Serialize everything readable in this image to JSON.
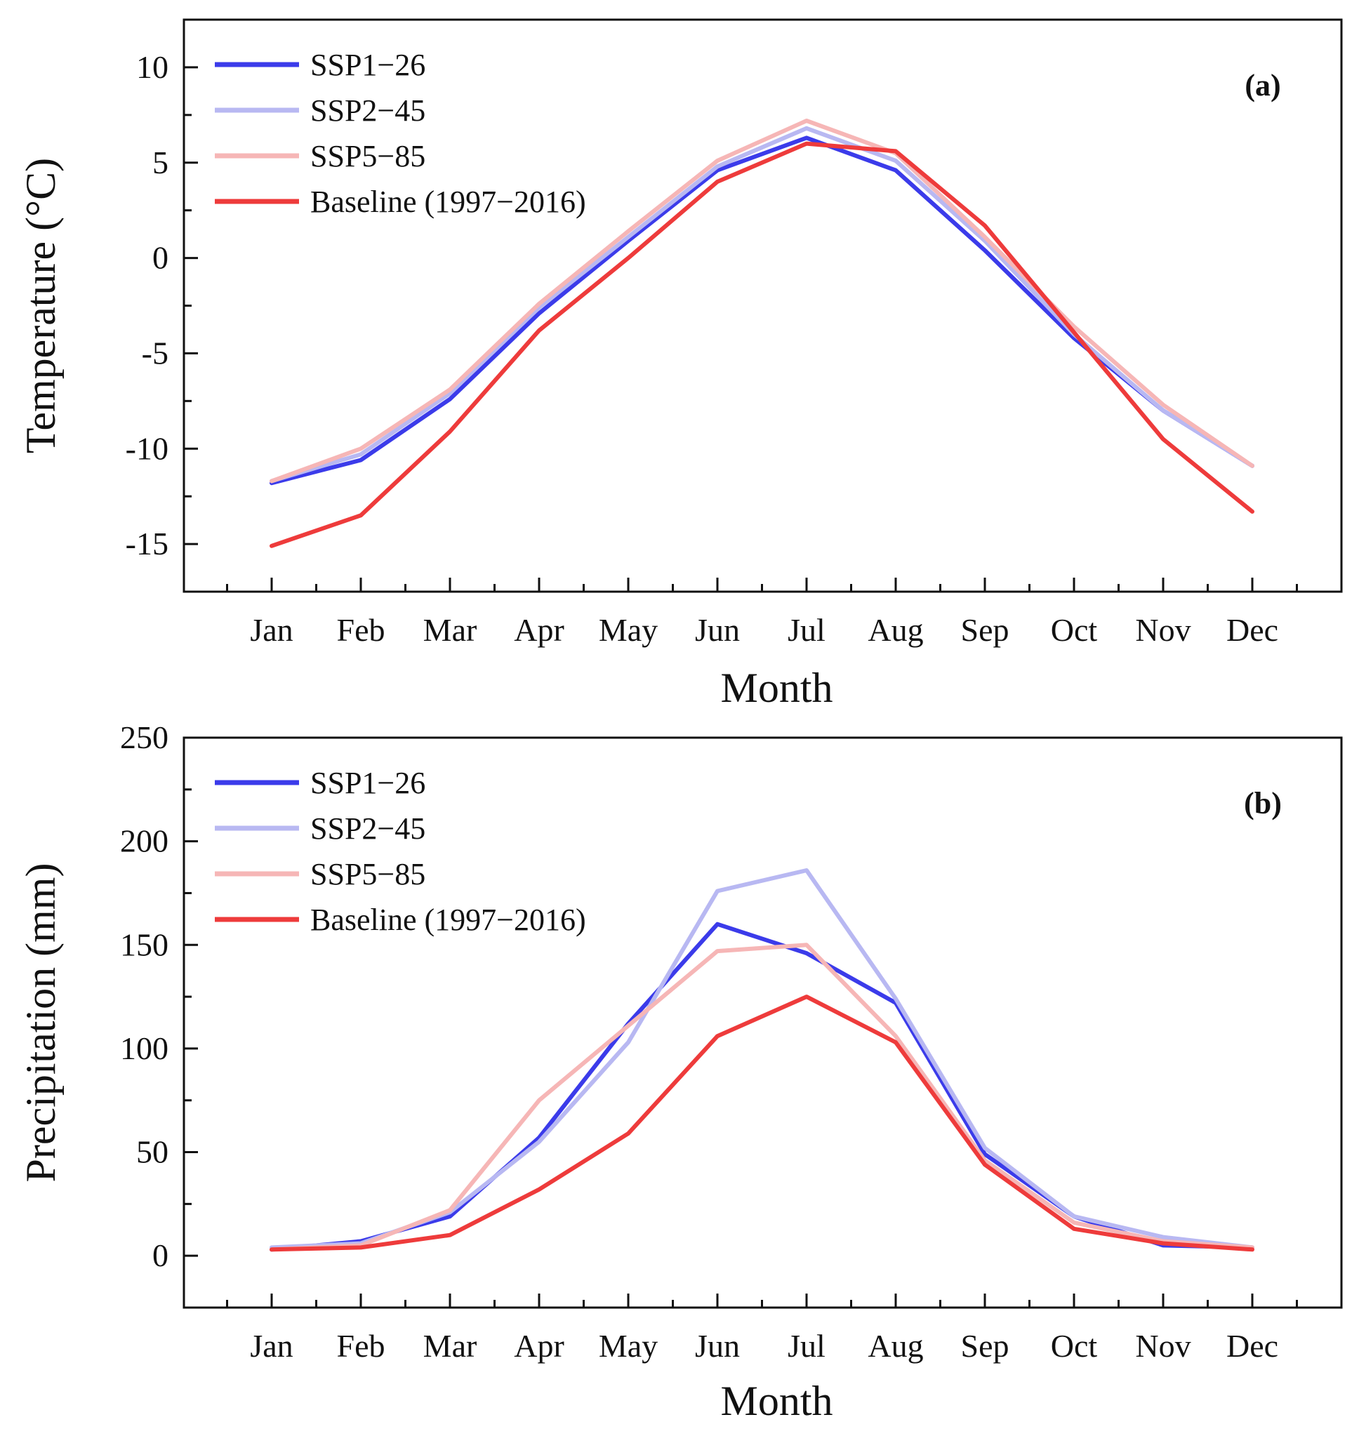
{
  "chart_data": [
    {
      "type": "line",
      "panel_label": "(a)",
      "title": "",
      "xlabel": "Month",
      "ylabel": "Temperature (°C)",
      "categories": [
        "Jan",
        "Feb",
        "Mar",
        "Apr",
        "May",
        "Jun",
        "Jul",
        "Aug",
        "Sep",
        "Oct",
        "Nov",
        "Dec"
      ],
      "ylim": [
        -17.5,
        12.5
      ],
      "yticks": [
        10,
        5,
        0,
        -5,
        -10,
        -15
      ],
      "ytick_labels": [
        "10",
        "5",
        "0",
        "-5",
        "-10",
        "-15"
      ],
      "legend_position": "top-left",
      "series": [
        {
          "name": "SSP1−26",
          "color": "#3b3bea",
          "values": [
            -11.8,
            -10.6,
            -7.4,
            -2.9,
            0.9,
            4.6,
            6.3,
            4.6,
            0.4,
            -4.2,
            -8.0,
            -10.9
          ]
        },
        {
          "name": "SSP2−45",
          "color": "#b8b8f2",
          "values": [
            -11.7,
            -10.3,
            -7.1,
            -2.6,
            1.1,
            4.8,
            6.8,
            5.1,
            0.9,
            -4.0,
            -8.0,
            -10.9
          ]
        },
        {
          "name": "SSP5−85",
          "color": "#f6b6b6",
          "values": [
            -11.7,
            -10.0,
            -6.9,
            -2.4,
            1.4,
            5.1,
            7.2,
            5.5,
            1.1,
            -3.6,
            -7.7,
            -10.9
          ]
        },
        {
          "name": "Baseline (1997−2016)",
          "color": "#ee3b3b",
          "values": [
            -15.1,
            -13.5,
            -9.1,
            -3.8,
            0.0,
            4.0,
            6.0,
            5.6,
            1.7,
            -3.9,
            -9.5,
            -13.3
          ]
        }
      ]
    },
    {
      "type": "line",
      "panel_label": "(b)",
      "title": "",
      "xlabel": "Month",
      "ylabel": "Precipitation (mm)",
      "categories": [
        "Jan",
        "Feb",
        "Mar",
        "Apr",
        "May",
        "Jun",
        "Jul",
        "Aug",
        "Sep",
        "Oct",
        "Nov",
        "Dec"
      ],
      "ylim": [
        -25,
        250
      ],
      "yticks": [
        250,
        200,
        150,
        100,
        50,
        0
      ],
      "ytick_labels": [
        "250",
        "200",
        "150",
        "100",
        "50",
        "0"
      ],
      "legend_position": "top-left",
      "series": [
        {
          "name": "SSP1−26",
          "color": "#3b3bea",
          "values": [
            3,
            7,
            19,
            57,
            112,
            160,
            146,
            122,
            49,
            19,
            5,
            4
          ]
        },
        {
          "name": "SSP2−45",
          "color": "#b8b8f2",
          "values": [
            4,
            6,
            21,
            55,
            103,
            176,
            186,
            124,
            52,
            19,
            9,
            4
          ]
        },
        {
          "name": "SSP5−85",
          "color": "#f6b6b6",
          "values": [
            3,
            5,
            22,
            75,
            111,
            147,
            150,
            106,
            46,
            16,
            7,
            4
          ]
        },
        {
          "name": "Baseline (1997−2016)",
          "color": "#ee3b3b",
          "values": [
            3,
            4,
            10,
            32,
            59,
            106,
            125,
            103,
            44,
            13,
            6,
            3
          ]
        }
      ]
    }
  ]
}
